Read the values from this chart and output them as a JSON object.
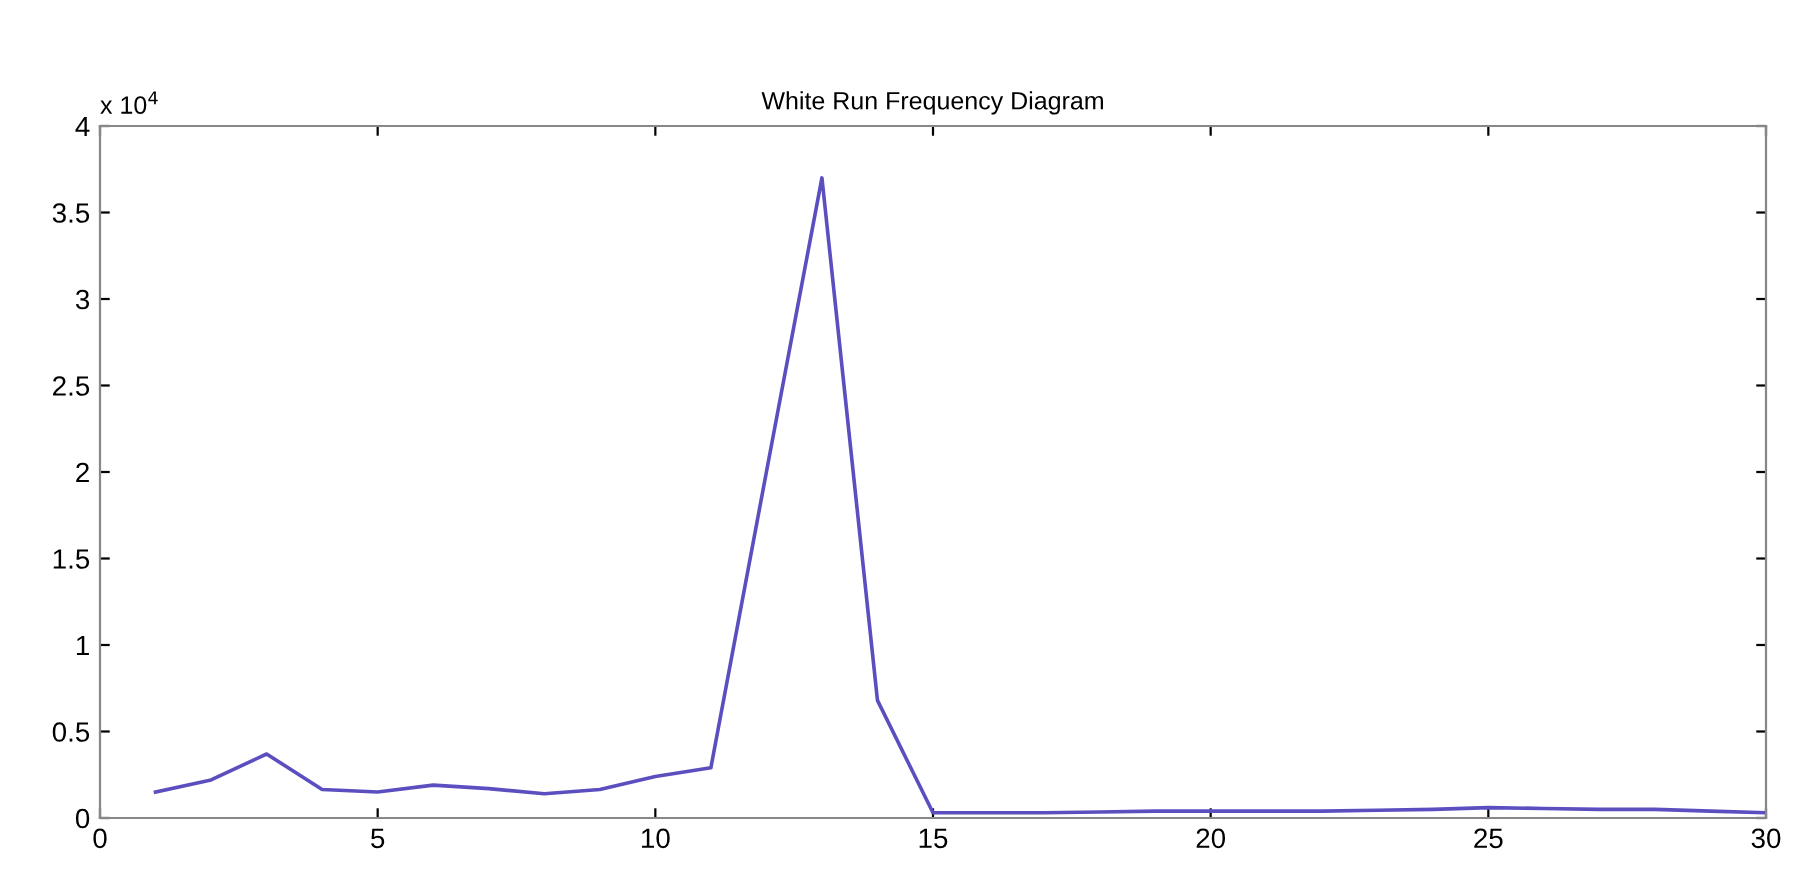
{
  "chart_data": {
    "type": "line",
    "title": "White Run Frequency Diagram",
    "annotations": [
      "x 10$^{4}$"
    ],
    "x": [
      1,
      2,
      3,
      4,
      5,
      6,
      7,
      8,
      9,
      10,
      11,
      12,
      13,
      14,
      15,
      16,
      17,
      18,
      19,
      20,
      21,
      22,
      23,
      24,
      25,
      26,
      27,
      28,
      29,
      30
    ],
    "series": [
      {
        "color": "#5b4fc0",
        "values": [
          0.15,
          0.22,
          0.37,
          0.165,
          0.15,
          0.19,
          0.17,
          0.14,
          0.165,
          0.24,
          0.29,
          2.0,
          3.7,
          0.68,
          0.03,
          0.03,
          0.03,
          0.035,
          0.04,
          0.04,
          0.04,
          0.04,
          0.045,
          0.05,
          0.06,
          0.055,
          0.05,
          0.05,
          0.04,
          0.03
        ]
      }
    ],
    "xlim": [
      0,
      30
    ],
    "ylim": [
      0,
      4
    ],
    "xticks": [
      0,
      5,
      10,
      15,
      20,
      25,
      30
    ],
    "yticks": [
      0,
      0.5,
      1,
      1.5,
      2,
      2.5,
      3,
      3.5,
      4
    ],
    "grid": false,
    "legend": false
  }
}
